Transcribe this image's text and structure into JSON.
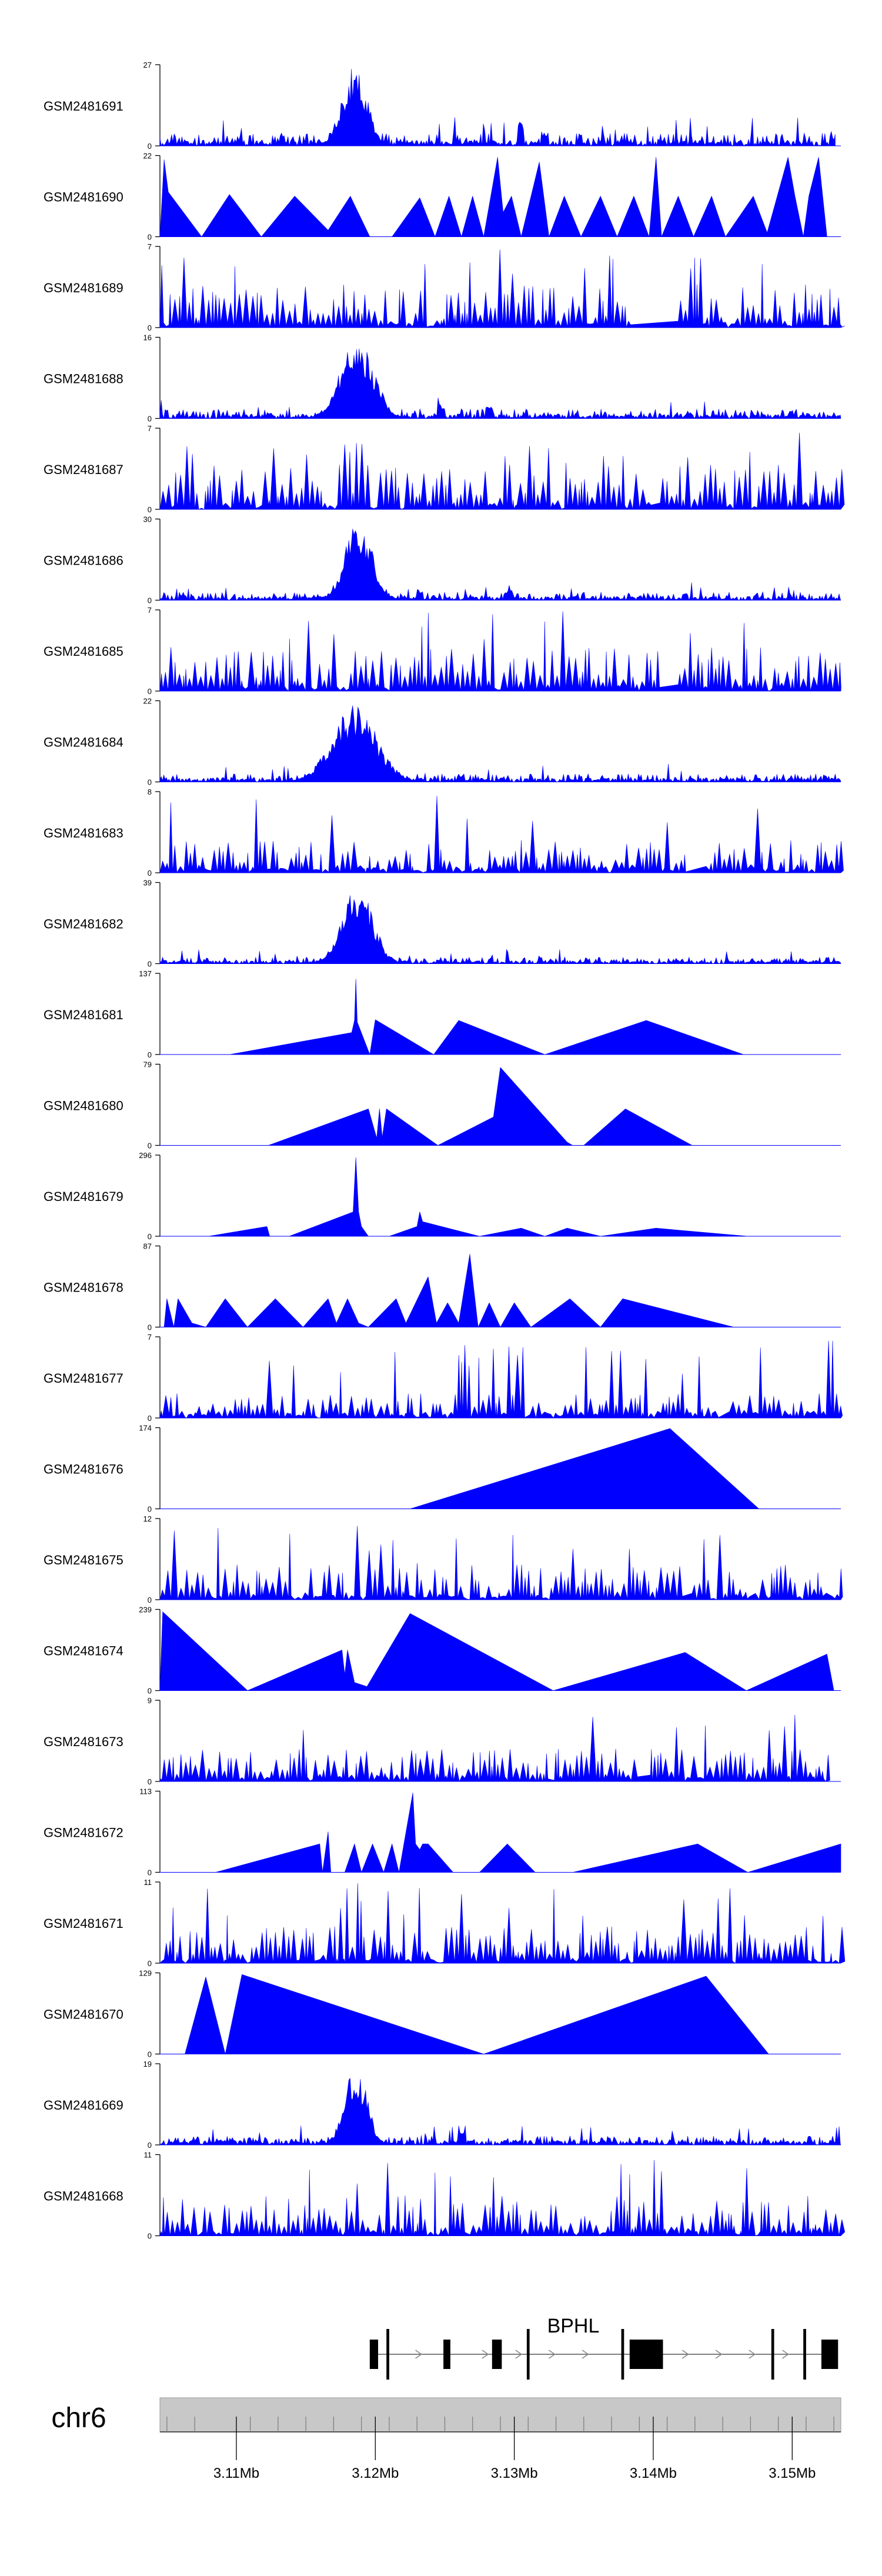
{
  "figure": {
    "chromosome": "chr6",
    "gene": "BPHL",
    "axis_unit_label": "Mb"
  },
  "chart_data": {
    "type": "area",
    "title": "",
    "xlabel": "",
    "ylabel": "",
    "xlim": [
      3.1045,
      3.1535
    ],
    "x_ticks": [
      3.11,
      3.12,
      3.13,
      3.14,
      3.15
    ],
    "x_tick_labels": [
      "3.11Mb",
      "3.12Mb",
      "3.13Mb",
      "3.14Mb",
      "3.15Mb"
    ],
    "x_minor_ticks": [
      3.105,
      3.107,
      3.111,
      3.113,
      3.115,
      3.117,
      3.119,
      3.121,
      3.123,
      3.125,
      3.127,
      3.129,
      3.131,
      3.133,
      3.135,
      3.137,
      3.139,
      3.141,
      3.143,
      3.145,
      3.147,
      3.149,
      3.151,
      3.153
    ],
    "color": "#0000ff",
    "series": [
      {
        "name": "GSM2481691",
        "ymax": 27,
        "ylim": [
          0,
          27
        ],
        "style": "dense",
        "start": 3.1045,
        "end": 3.1531,
        "base": 0.07,
        "amp": 0.16,
        "peak": 3.1185,
        "peak_width": 0.0009,
        "peak_height": 1.0,
        "extra_peaks": [
          [
            3.1305,
            0.3
          ],
          [
            3.1322,
            0.18
          ]
        ],
        "seed": 11
      },
      {
        "name": "GSM2481690",
        "ymax": 22,
        "ylim": [
          0,
          22
        ],
        "style": "spikes",
        "points": [
          [
            3.1045,
            0
          ],
          [
            3.1048,
            0.95
          ],
          [
            3.1051,
            0.55
          ],
          [
            3.1075,
            0
          ],
          [
            3.1095,
            0.52
          ],
          [
            3.1118,
            0
          ],
          [
            3.1142,
            0.5
          ],
          [
            3.1166,
            0.08
          ],
          [
            3.1182,
            0.5
          ],
          [
            3.1196,
            0
          ],
          [
            3.1212,
            0
          ],
          [
            3.1232,
            0.48
          ],
          [
            3.1243,
            0
          ],
          [
            3.1253,
            0.5
          ],
          [
            3.1262,
            0
          ],
          [
            3.127,
            0.5
          ],
          [
            3.1278,
            0
          ],
          [
            3.1288,
            0.98
          ],
          [
            3.1292,
            0.3
          ],
          [
            3.1298,
            0.5
          ],
          [
            3.1305,
            0
          ],
          [
            3.1318,
            0.92
          ],
          [
            3.1325,
            0
          ],
          [
            3.1336,
            0.5
          ],
          [
            3.1348,
            0
          ],
          [
            3.1362,
            0.5
          ],
          [
            3.1374,
            0
          ],
          [
            3.1386,
            0.5
          ],
          [
            3.1397,
            0
          ],
          [
            3.1402,
            0.98
          ],
          [
            3.1406,
            0
          ],
          [
            3.1418,
            0.5
          ],
          [
            3.1429,
            0
          ],
          [
            3.1442,
            0.5
          ],
          [
            3.1452,
            0
          ],
          [
            3.1472,
            0.5
          ],
          [
            3.1482,
            0.05
          ],
          [
            3.1497,
            0.98
          ],
          [
            3.1502,
            0.5
          ],
          [
            3.1508,
            0
          ],
          [
            3.1512,
            0.5
          ],
          [
            3.1519,
            0.98
          ],
          [
            3.1525,
            0
          ]
        ],
        "seed": 12
      },
      {
        "name": "GSM2481689",
        "ymax": 7,
        "ylim": [
          0,
          7
        ],
        "style": "spiky",
        "start": 3.1045,
        "end": 3.1535,
        "gap": [
          3.1383,
          3.1418
        ],
        "amp": 0.55,
        "tall": 1.0,
        "seed": 13
      },
      {
        "name": "GSM2481688",
        "ymax": 16,
        "ylim": [
          0,
          16
        ],
        "style": "dense",
        "start": 3.1045,
        "end": 3.1535,
        "base": 0.06,
        "amp": 0.12,
        "peak": 3.1187,
        "peak_width": 0.0012,
        "peak_height": 1.0,
        "extra_peaks": [
          [
            3.1248,
            0.18
          ],
          [
            3.1282,
            0.15
          ]
        ],
        "seed": 14
      },
      {
        "name": "GSM2481687",
        "ymax": 7,
        "ylim": [
          0,
          7
        ],
        "style": "spiky",
        "start": 3.1045,
        "end": 3.1535,
        "gap": [
          3.1395,
          3.1405
        ],
        "amp": 0.55,
        "tall": 0.95,
        "peak": 3.1187,
        "seed": 15
      },
      {
        "name": "GSM2481686",
        "ymax": 30,
        "ylim": [
          0,
          30
        ],
        "style": "dense",
        "start": 3.1045,
        "end": 3.1535,
        "base": 0.05,
        "amp": 0.1,
        "peak": 3.1188,
        "peak_width": 0.001,
        "peak_height": 1.0,
        "extra_peaks": [
          [
            3.1232,
            0.15
          ],
          [
            3.1295,
            0.12
          ]
        ],
        "seed": 16
      },
      {
        "name": "GSM2481685",
        "ymax": 7,
        "ylim": [
          0,
          7
        ],
        "style": "spiky",
        "start": 3.1045,
        "end": 3.1535,
        "gap": [
          3.1402,
          3.1418
        ],
        "amp": 0.55,
        "tall": 1.0,
        "seed": 17
      },
      {
        "name": "GSM2481684",
        "ymax": 22,
        "ylim": [
          0,
          22
        ],
        "style": "dense",
        "start": 3.1045,
        "end": 3.1535,
        "base": 0.05,
        "amp": 0.1,
        "peak": 3.1185,
        "peak_width": 0.0016,
        "peak_height": 0.95,
        "extra_peaks": [
          [
            3.1262,
            0.1
          ]
        ],
        "seed": 18
      },
      {
        "name": "GSM2481683",
        "ymax": 8,
        "ylim": [
          0,
          8
        ],
        "style": "spiky",
        "start": 3.1045,
        "end": 3.1535,
        "gap": [
          3.1422,
          3.1438
        ],
        "amp": 0.4,
        "tall": 0.95,
        "seed": 19
      },
      {
        "name": "GSM2481682",
        "ymax": 39,
        "ylim": [
          0,
          39
        ],
        "style": "dense",
        "start": 3.1045,
        "end": 3.1535,
        "base": 0.04,
        "amp": 0.08,
        "peak": 3.1187,
        "peak_width": 0.0011,
        "peak_height": 1.0,
        "extra_peaks": [],
        "seed": 20
      },
      {
        "name": "GSM2481681",
        "ymax": 137,
        "ylim": [
          0,
          137
        ],
        "style": "spikes",
        "points": [
          [
            3.1095,
            0
          ],
          [
            3.1183,
            0.27
          ],
          [
            3.1185,
            0.42
          ],
          [
            3.1186,
            0.93
          ],
          [
            3.1187,
            0.4
          ],
          [
            3.1196,
            0
          ],
          [
            3.12,
            0.43
          ],
          [
            3.1242,
            0
          ],
          [
            3.126,
            0.42
          ],
          [
            3.1322,
            0
          ],
          [
            3.1395,
            0.42
          ],
          [
            3.1465,
            0
          ]
        ],
        "seed": 21
      },
      {
        "name": "GSM2481680",
        "ymax": 79,
        "ylim": [
          0,
          79
        ],
        "style": "spikes",
        "points": [
          [
            3.1123,
            0
          ],
          [
            3.1195,
            0.45
          ],
          [
            3.1201,
            0.09
          ],
          [
            3.1203,
            0.45
          ],
          [
            3.1205,
            0.1
          ],
          [
            3.1208,
            0.45
          ],
          [
            3.1245,
            0
          ],
          [
            3.1285,
            0.35
          ],
          [
            3.129,
            0.96
          ],
          [
            3.1338,
            0.04
          ],
          [
            3.1342,
            0
          ],
          [
            3.135,
            0
          ],
          [
            3.138,
            0.45
          ],
          [
            3.1428,
            0
          ]
        ],
        "seed": 22
      },
      {
        "name": "GSM2481679",
        "ymax": 296,
        "ylim": [
          0,
          296
        ],
        "style": "spikes",
        "points": [
          [
            3.108,
            0
          ],
          [
            3.1122,
            0.12
          ],
          [
            3.1124,
            0
          ],
          [
            3.1138,
            0
          ],
          [
            3.1184,
            0.3
          ],
          [
            3.1186,
            0.97
          ],
          [
            3.1188,
            0.3
          ],
          [
            3.119,
            0.12
          ],
          [
            3.1195,
            0
          ],
          [
            3.121,
            0
          ],
          [
            3.123,
            0.12
          ],
          [
            3.1232,
            0.3
          ],
          [
            3.1234,
            0.18
          ],
          [
            3.1275,
            0
          ],
          [
            3.1305,
            0.1
          ],
          [
            3.1322,
            0
          ],
          [
            3.1338,
            0.1
          ],
          [
            3.1362,
            0
          ],
          [
            3.1402,
            0.1
          ],
          [
            3.1468,
            0
          ]
        ],
        "seed": 23
      },
      {
        "name": "GSM2481678",
        "ymax": 87,
        "ylim": [
          0,
          87
        ],
        "style": "spikes",
        "points": [
          [
            3.1048,
            0
          ],
          [
            3.105,
            0.35
          ],
          [
            3.1055,
            0
          ],
          [
            3.1058,
            0.35
          ],
          [
            3.1068,
            0.05
          ],
          [
            3.1078,
            0
          ],
          [
            3.1092,
            0.35
          ],
          [
            3.1108,
            0
          ],
          [
            3.1128,
            0.35
          ],
          [
            3.1148,
            0
          ],
          [
            3.1166,
            0.35
          ],
          [
            3.1172,
            0.05
          ],
          [
            3.118,
            0.35
          ],
          [
            3.1188,
            0.05
          ],
          [
            3.1195,
            0
          ],
          [
            3.1215,
            0.35
          ],
          [
            3.1222,
            0.05
          ],
          [
            3.1238,
            0.62
          ],
          [
            3.1244,
            0.05
          ],
          [
            3.1252,
            0.3
          ],
          [
            3.126,
            0.05
          ],
          [
            3.1268,
            0.9
          ],
          [
            3.1274,
            0
          ],
          [
            3.1282,
            0.3
          ],
          [
            3.129,
            0
          ],
          [
            3.13,
            0.3
          ],
          [
            3.1312,
            0
          ],
          [
            3.134,
            0.35
          ],
          [
            3.1362,
            0
          ],
          [
            3.1378,
            0.35
          ],
          [
            3.1458,
            0
          ]
        ],
        "seed": 24
      },
      {
        "name": "GSM2481677",
        "ymax": 7,
        "ylim": [
          0,
          7
        ],
        "style": "spiky",
        "start": 3.1045,
        "end": 3.1535,
        "gap": [
          3.1445,
          3.1455
        ],
        "amp": 0.3,
        "tall": 0.9,
        "tall_region": [
          3.1258,
          3.1285
        ],
        "end_peak": 3.1525,
        "seed": 25
      },
      {
        "name": "GSM2481676",
        "ymax": 174,
        "ylim": [
          0,
          174
        ],
        "style": "spikes",
        "points": [
          [
            3.1225,
            0
          ],
          [
            3.1412,
            0.99
          ],
          [
            3.1476,
            0
          ]
        ],
        "seed": 26
      },
      {
        "name": "GSM2481675",
        "ymax": 12,
        "ylim": [
          0,
          12
        ],
        "style": "spiky",
        "start": 3.1045,
        "end": 3.1535,
        "gap": [
          3.1418,
          3.1428
        ],
        "amp": 0.45,
        "tall": 0.9,
        "peak": 3.1185,
        "seed": 27
      },
      {
        "name": "GSM2481674",
        "ymax": 239,
        "ylim": [
          0,
          239
        ],
        "style": "spikes",
        "points": [
          [
            3.1045,
            0
          ],
          [
            3.1047,
            0.97
          ],
          [
            3.1108,
            0
          ],
          [
            3.1176,
            0.5
          ],
          [
            3.1178,
            0.2
          ],
          [
            3.118,
            0.5
          ],
          [
            3.1185,
            0.1
          ],
          [
            3.1194,
            0.05
          ],
          [
            3.1225,
            0.95
          ],
          [
            3.1328,
            0
          ],
          [
            3.1423,
            0.47
          ],
          [
            3.1467,
            0
          ],
          [
            3.1525,
            0.45
          ],
          [
            3.153,
            0
          ]
        ],
        "seed": 28
      },
      {
        "name": "GSM2481673",
        "ymax": 9,
        "ylim": [
          0,
          9
        ],
        "style": "spiky",
        "start": 3.1045,
        "end": 3.1525,
        "gap": [
          3.1388,
          3.1398
        ],
        "amp": 0.4,
        "tall": 0.95,
        "seed": 29
      },
      {
        "name": "GSM2481672",
        "ymax": 113,
        "ylim": [
          0,
          113
        ],
        "style": "spikes",
        "points": [
          [
            3.1085,
            0
          ],
          [
            3.116,
            0.35
          ],
          [
            3.1162,
            0
          ],
          [
            3.1166,
            0.5
          ],
          [
            3.1168,
            0
          ],
          [
            3.1178,
            0
          ],
          [
            3.1185,
            0.35
          ],
          [
            3.119,
            0
          ],
          [
            3.1198,
            0.35
          ],
          [
            3.1206,
            0
          ],
          [
            3.1212,
            0.35
          ],
          [
            3.1217,
            0
          ],
          [
            3.1227,
            0.98
          ],
          [
            3.1229,
            0.35
          ],
          [
            3.1232,
            0.28
          ],
          [
            3.1234,
            0.35
          ],
          [
            3.1238,
            0.35
          ],
          [
            3.1256,
            0
          ],
          [
            3.1275,
            0
          ],
          [
            3.1295,
            0.35
          ],
          [
            3.1315,
            0
          ],
          [
            3.1342,
            0
          ],
          [
            3.1432,
            0.35
          ],
          [
            3.1468,
            0
          ],
          [
            3.1535,
            0.35
          ]
        ],
        "seed": 30
      },
      {
        "name": "GSM2481671",
        "ymax": 11,
        "ylim": [
          0,
          11
        ],
        "style": "spiky",
        "start": 3.1045,
        "end": 3.1535,
        "gap": null,
        "amp": 0.45,
        "tall": 0.95,
        "peak": 3.1186,
        "seed": 31
      },
      {
        "name": "GSM2481670",
        "ymax": 129,
        "ylim": [
          0,
          129
        ],
        "style": "spikes",
        "points": [
          [
            3.1063,
            0
          ],
          [
            3.1078,
            0.95
          ],
          [
            3.1092,
            0
          ],
          [
            3.1104,
            0.98
          ],
          [
            3.1278,
            0
          ],
          [
            3.1438,
            0.96
          ],
          [
            3.1483,
            0
          ]
        ],
        "seed": 32
      },
      {
        "name": "GSM2481669",
        "ymax": 19,
        "ylim": [
          0,
          19
        ],
        "style": "dense",
        "start": 3.1045,
        "end": 3.1535,
        "base": 0.06,
        "amp": 0.11,
        "peak": 3.1186,
        "peak_width": 0.0008,
        "peak_height": 1.0,
        "extra_peaks": [
          [
            3.1262,
            0.15
          ]
        ],
        "seed": 33
      },
      {
        "name": "GSM2481668",
        "ymax": 11,
        "ylim": [
          0,
          11
        ],
        "style": "spiky",
        "start": 3.1045,
        "end": 3.1535,
        "gap": null,
        "amp": 0.5,
        "tall": 1.0,
        "seed": 34
      }
    ],
    "gene_track": {
      "name": "BPHL",
      "strand": "+",
      "start": 3.1196,
      "end": 3.1533,
      "exons": [
        [
          3.1196,
          3.1202
        ],
        [
          3.1208,
          3.121
        ],
        [
          3.1249,
          3.1254
        ],
        [
          3.1284,
          3.1291
        ],
        [
          3.1309,
          3.1311
        ],
        [
          3.1377,
          3.1379
        ],
        [
          3.1383,
          3.1407
        ],
        [
          3.1485,
          3.1487
        ],
        [
          3.1508,
          3.151
        ],
        [
          3.1521,
          3.1533
        ]
      ],
      "tall_exons": [
        3.1208,
        3.1309,
        3.1377,
        3.1485,
        3.1508
      ]
    }
  }
}
